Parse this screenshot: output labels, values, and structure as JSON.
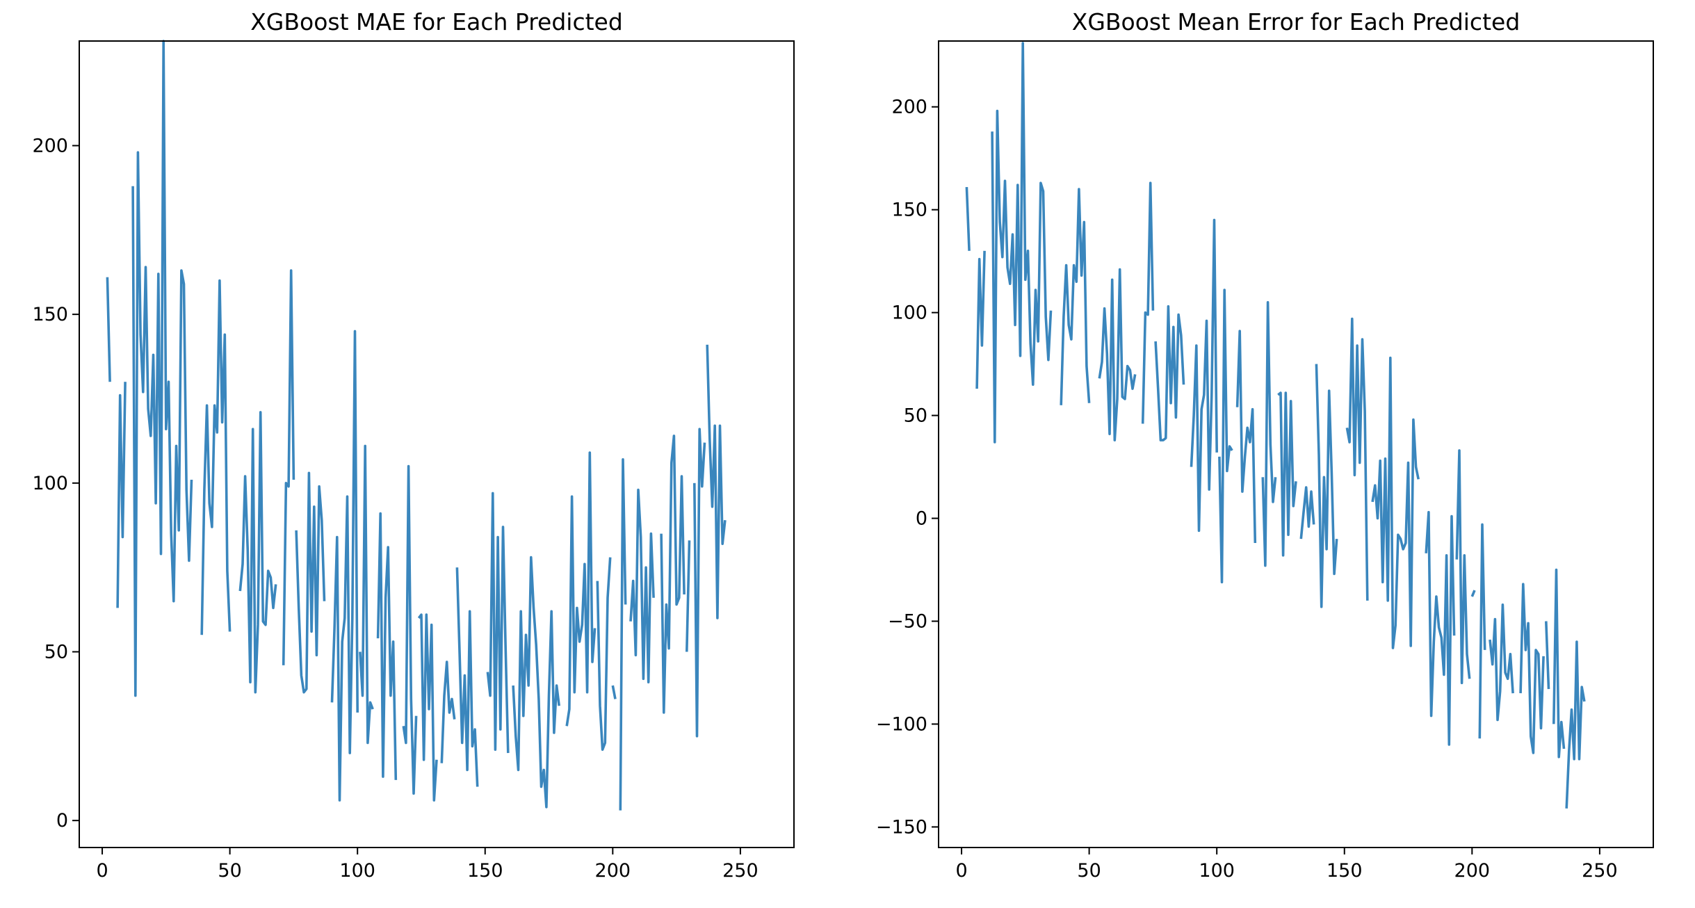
{
  "chart_data": [
    {
      "type": "line",
      "title": "XGBoost MAE for Each Predicted",
      "xlabel": "",
      "ylabel": "",
      "xlim": [
        -9,
        271
      ],
      "ylim": [
        -8,
        231
      ],
      "xticks": [
        0,
        50,
        100,
        150,
        200,
        250
      ],
      "yticks": [
        0,
        50,
        100,
        150,
        200
      ],
      "x_start": 2,
      "segments": [
        {
          "x0": 2,
          "y": [
            161,
            130
          ]
        },
        {
          "x0": 6,
          "y": [
            63,
            126,
            84,
            130
          ]
        },
        {
          "x0": 12,
          "y": [
            188,
            37,
            198,
            144,
            127,
            164,
            122,
            114,
            138,
            94,
            162,
            79,
            231,
            116,
            130,
            85,
            65,
            111,
            86,
            163,
            159,
            98,
            77,
            101
          ]
        },
        {
          "x0": 39,
          "y": [
            55,
            98,
            123,
            94,
            87,
            123,
            115,
            160,
            118,
            144,
            74,
            56
          ]
        },
        {
          "x0": 54,
          "y": [
            68,
            76,
            102,
            80,
            41,
            116,
            38,
            58,
            121,
            59,
            58,
            74,
            72,
            63,
            70
          ]
        },
        {
          "x0": 71,
          "y": [
            46,
            100,
            99,
            163,
            101
          ]
        },
        {
          "x0": 76,
          "y": [
            86,
            63,
            43,
            38,
            39,
            103,
            56,
            93,
            49,
            99,
            89,
            65
          ]
        },
        {
          "x0": 90,
          "y": [
            35,
            57,
            84,
            6,
            53,
            60,
            96,
            20,
            60,
            145,
            32
          ]
        },
        {
          "x0": 101,
          "y": [
            50,
            37,
            111,
            23,
            35,
            33
          ]
        },
        {
          "x0": 108,
          "y": [
            54,
            91,
            13,
            66,
            81,
            37,
            53,
            12
          ]
        },
        {
          "x0": 118,
          "y": [
            28,
            23,
            105,
            36,
            8,
            31
          ]
        },
        {
          "x0": 124,
          "y": [
            60,
            61,
            18,
            61,
            33,
            58,
            6,
            18
          ]
        },
        {
          "x0": 133,
          "y": [
            17,
            37,
            47,
            32,
            36,
            30
          ]
        },
        {
          "x0": 139,
          "y": [
            75,
            50,
            23,
            43,
            15,
            62,
            22,
            27,
            10
          ]
        },
        {
          "x0": 151,
          "y": [
            44,
            37,
            97,
            21,
            84,
            27,
            87,
            52,
            20
          ]
        },
        {
          "x0": 161,
          "y": [
            40,
            25,
            15,
            62,
            31,
            55,
            40,
            78,
            63,
            52,
            36,
            10,
            15,
            4,
            37,
            62,
            26,
            40,
            34
          ]
        },
        {
          "x0": 182,
          "y": [
            28,
            33,
            96,
            38,
            63,
            53,
            58,
            76,
            38,
            109,
            47,
            57
          ]
        },
        {
          "x0": 194,
          "y": [
            71,
            34,
            21,
            23,
            66,
            78
          ]
        },
        {
          "x0": 200,
          "y": [
            40,
            36
          ]
        },
        {
          "x0": 203,
          "y": [
            3,
            107,
            64
          ]
        },
        {
          "x0": 207,
          "y": [
            59,
            71,
            49,
            98,
            84,
            42,
            75,
            41,
            85,
            66
          ]
        },
        {
          "x0": 219,
          "y": [
            85,
            32,
            64,
            51,
            106,
            114,
            64,
            66,
            102,
            67
          ]
        },
        {
          "x0": 229,
          "y": [
            50,
            83
          ]
        },
        {
          "x0": 232,
          "y": [
            100,
            25,
            116,
            99,
            112
          ]
        },
        {
          "x0": 237,
          "y": [
            141,
            113,
            93,
            117,
            60,
            117,
            82,
            89
          ]
        }
      ]
    },
    {
      "type": "line",
      "title": "XGBoost Mean Error for Each Predicted",
      "xlabel": "",
      "ylabel": "",
      "xlim": [
        -9,
        271
      ],
      "ylim": [
        -160,
        232
      ],
      "xticks": [
        0,
        50,
        100,
        150,
        200,
        250
      ],
      "yticks": [
        -150,
        -100,
        -50,
        0,
        50,
        100,
        150,
        200
      ],
      "x_start": 2,
      "segments": [
        {
          "x0": 2,
          "y": [
            161,
            130
          ]
        },
        {
          "x0": 6,
          "y": [
            63,
            126,
            84,
            130
          ]
        },
        {
          "x0": 12,
          "y": [
            188,
            37,
            198,
            144,
            127,
            164,
            122,
            114,
            138,
            94,
            162,
            79,
            231,
            116,
            130,
            85,
            65,
            111,
            86,
            163,
            159,
            98,
            77,
            101
          ]
        },
        {
          "x0": 39,
          "y": [
            55,
            98,
            123,
            94,
            87,
            123,
            115,
            160,
            118,
            144,
            74,
            56
          ]
        },
        {
          "x0": 54,
          "y": [
            68,
            76,
            102,
            80,
            41,
            116,
            38,
            58,
            121,
            59,
            58,
            74,
            72,
            63,
            70
          ]
        },
        {
          "x0": 71,
          "y": [
            46,
            100,
            99,
            163,
            101
          ]
        },
        {
          "x0": 76,
          "y": [
            86,
            63,
            38,
            38,
            39,
            103,
            56,
            93,
            49,
            99,
            89,
            65
          ]
        },
        {
          "x0": 90,
          "y": [
            25,
            50,
            84,
            -6,
            53,
            60,
            96,
            14,
            60,
            145,
            32
          ]
        },
        {
          "x0": 101,
          "y": [
            30,
            -31,
            111,
            23,
            35,
            33
          ]
        },
        {
          "x0": 108,
          "y": [
            54,
            91,
            13,
            30,
            44,
            37,
            53,
            -12
          ]
        },
        {
          "x0": 118,
          "y": [
            20,
            -23,
            105,
            36,
            8,
            20
          ]
        },
        {
          "x0": 124,
          "y": [
            60,
            61,
            -18,
            61,
            -8,
            57,
            6,
            18
          ]
        },
        {
          "x0": 133,
          "y": [
            -10,
            3,
            15,
            -4,
            13,
            -3
          ]
        },
        {
          "x0": 139,
          "y": [
            75,
            31,
            -43,
            20,
            -15,
            62,
            22,
            -27,
            -10
          ]
        },
        {
          "x0": 151,
          "y": [
            44,
            37,
            97,
            21,
            84,
            27,
            87,
            52,
            -40
          ]
        },
        {
          "x0": 161,
          "y": [
            8,
            16,
            0,
            28,
            -31,
            29,
            -40,
            78,
            -63,
            -52,
            -8,
            -10,
            -15,
            -12,
            27,
            -62,
            48,
            25,
            19
          ]
        },
        {
          "x0": 182,
          "y": [
            -17,
            3,
            -96,
            -60,
            -38,
            -53,
            -58,
            -76,
            -18,
            -110,
            1,
            -57
          ]
        },
        {
          "x0": 194,
          "y": [
            -20,
            33,
            -80,
            -18,
            -66,
            -78
          ]
        },
        {
          "x0": 200,
          "y": [
            -38,
            -35
          ]
        },
        {
          "x0": 203,
          "y": [
            -107,
            -3,
            -64
          ]
        },
        {
          "x0": 207,
          "y": [
            -59,
            -71,
            -49,
            -98,
            -84,
            -42,
            -75,
            -78,
            -66,
            -85
          ]
        },
        {
          "x0": 219,
          "y": [
            -85,
            -32,
            -64,
            -51,
            -106,
            -114,
            -64,
            -66,
            -102,
            -67
          ]
        },
        {
          "x0": 229,
          "y": [
            -50,
            -83
          ]
        },
        {
          "x0": 232,
          "y": [
            -100,
            -25,
            -116,
            -99,
            -112
          ]
        },
        {
          "x0": 237,
          "y": [
            -141,
            -113,
            -93,
            -117,
            -60,
            -117,
            -82,
            -89
          ]
        }
      ]
    }
  ],
  "colors": {
    "line": "#3a86bd",
    "axis": "#000000",
    "background": "#ffffff"
  }
}
